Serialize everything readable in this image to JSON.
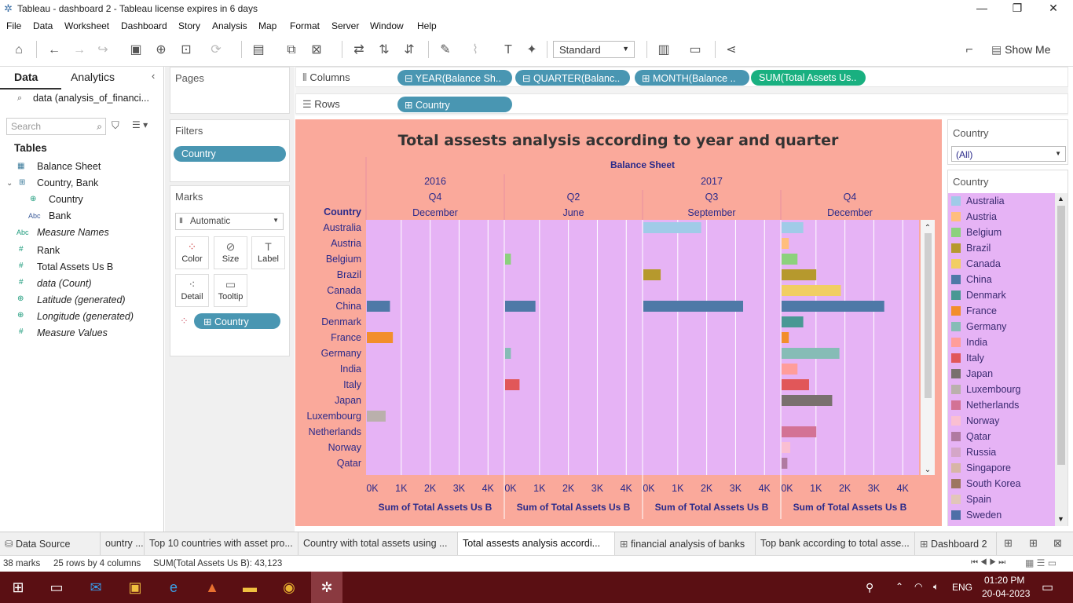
{
  "window": {
    "title": "Tableau - dashboard 2 - Tableau license expires in 6 days"
  },
  "menu": [
    "File",
    "Data",
    "Worksheet",
    "Dashboard",
    "Story",
    "Analysis",
    "Map",
    "Format",
    "Server",
    "Window",
    "Help"
  ],
  "toolbar": {
    "fit_select": "Standard",
    "show_me": "Show Me"
  },
  "data_pane": {
    "tab_data": "Data",
    "tab_analytics": "Analytics",
    "datasource": "data (analysis_of_financi...",
    "search_placeholder": "Search",
    "tables_header": "Tables",
    "fields": [
      {
        "label": "Balance Sheet",
        "icon": "calendar-icon"
      },
      {
        "label": "Country, Bank",
        "icon": "hierarchy-icon"
      },
      {
        "label": "Country",
        "icon": "globe-icon"
      },
      {
        "label": "Bank",
        "icon": "abc-icon"
      },
      {
        "label": "Measure Names",
        "icon": "abc-icon"
      },
      {
        "label": "Rank",
        "icon": "hash-icon"
      },
      {
        "label": "Total Assets Us B",
        "icon": "hash-icon"
      },
      {
        "label": "data (Count)",
        "icon": "hash-icon"
      },
      {
        "label": "Latitude (generated)",
        "icon": "globe-icon"
      },
      {
        "label": "Longitude (generated)",
        "icon": "globe-icon"
      },
      {
        "label": "Measure Values",
        "icon": "hash-icon"
      }
    ],
    "abc": "Abc"
  },
  "pages": {
    "title": "Pages"
  },
  "filters": {
    "title": "Filters",
    "pill": "Country"
  },
  "marks": {
    "title": "Marks",
    "type": "Automatic",
    "buttons": [
      "Color",
      "Size",
      "Label",
      "Detail",
      "Tooltip"
    ],
    "color_pill": "Country"
  },
  "shelves": {
    "columns_label": "Columns",
    "rows_label": "Rows",
    "column_pills": [
      "YEAR(Balance Sh..",
      "QUARTER(Balanc..",
      "MONTH(Balance ..",
      "SUM(Total Assets Us.."
    ],
    "row_pills": [
      "Country"
    ]
  },
  "viz": {
    "bg": "#faa99b",
    "pane_bg": "#e6b3f5",
    "header_color": "#2a2a8a",
    "title_color": "#333333"
  },
  "chart_data": {
    "type": "bar",
    "title": "Total assests analysis according to year and quarter",
    "column_header": "Balance Sheet",
    "row_header": "Country",
    "axis_title": "Sum of Total Assets Us B",
    "axis_ticks": [
      "0K",
      "1K",
      "2K",
      "3K",
      "4K"
    ],
    "xlim": [
      0,
      4400
    ],
    "panes": [
      {
        "year": "2016",
        "quarter": "Q4",
        "month": "December"
      },
      {
        "year": "2017",
        "quarter": "Q2",
        "month": "June"
      },
      {
        "year": "",
        "quarter": "Q3",
        "month": "September"
      },
      {
        "year": "",
        "quarter": "Q4",
        "month": "December"
      }
    ],
    "categories": [
      "Australia",
      "Austria",
      "Belgium",
      "Brazil",
      "Canada",
      "China",
      "Denmark",
      "France",
      "Germany",
      "India",
      "Italy",
      "Japan",
      "Luxembourg",
      "Netherlands",
      "Norway",
      "Qatar"
    ],
    "colors": {
      "Australia": "#a0cbe8",
      "Austria": "#ffbe7d",
      "Belgium": "#8cd17d",
      "Brazil": "#b6992d",
      "Canada": "#f1ce63",
      "China": "#4e79a7",
      "Denmark": "#499894",
      "France": "#f28e2b",
      "Germany": "#86bcb6",
      "India": "#ff9d9a",
      "Italy": "#e15759",
      "Japan": "#79706e",
      "Luxembourg": "#bab0ac",
      "Netherlands": "#d37295",
      "Norway": "#fabfd2",
      "Qatar": "#b07aa1",
      "Russia": "#d4a6c8",
      "Singapore": "#d7b5a6",
      "South Korea": "#9d7660",
      "Spain": "#e2c6b9",
      "Sweden": "#4e6fa7"
    },
    "series": [
      {
        "values": [
          0,
          0,
          0,
          0,
          0,
          800,
          0,
          900,
          0,
          0,
          0,
          0,
          650,
          0,
          0,
          0
        ]
      },
      {
        "values": [
          0,
          0,
          200,
          0,
          0,
          1050,
          0,
          0,
          200,
          0,
          500,
          0,
          0,
          0,
          0,
          0
        ]
      },
      {
        "values": [
          2000,
          0,
          0,
          600,
          0,
          3450,
          0,
          0,
          0,
          0,
          0,
          0,
          0,
          0,
          0,
          0
        ]
      },
      {
        "values": [
          750,
          250,
          550,
          1200,
          2050,
          3550,
          750,
          250,
          2000,
          550,
          950,
          1750,
          0,
          1200,
          300,
          200
        ]
      }
    ]
  },
  "legend_filter": {
    "title": "Country",
    "value": "(All)"
  },
  "legend": {
    "title": "Country",
    "items": [
      "Australia",
      "Austria",
      "Belgium",
      "Brazil",
      "Canada",
      "China",
      "Denmark",
      "France",
      "Germany",
      "India",
      "Italy",
      "Japan",
      "Luxembourg",
      "Netherlands",
      "Norway",
      "Qatar",
      "Russia",
      "Singapore",
      "South Korea",
      "Spain",
      "Sweden"
    ]
  },
  "sheet_tabs": [
    {
      "label": "Data Source",
      "icon": "database-icon"
    },
    {
      "label": "ountry ..."
    },
    {
      "label": "Top 10 countries with asset pro..."
    },
    {
      "label": "Country with total assets using ..."
    },
    {
      "label": "Total assests analysis accordi...",
      "active": true
    },
    {
      "label": "financial analysis of banks",
      "icon": "grid-icon"
    },
    {
      "label": "Top bank according to total asse..."
    },
    {
      "label": "Dashboard 2",
      "icon": "dashboard-icon"
    }
  ],
  "status": {
    "marks": "38 marks",
    "rows": "25 rows by 4 columns",
    "sum": "SUM(Total Assets Us B): 43,123"
  },
  "taskbar": {
    "lang": "ENG",
    "time": "01:20 PM",
    "date": "20-04-2023"
  }
}
